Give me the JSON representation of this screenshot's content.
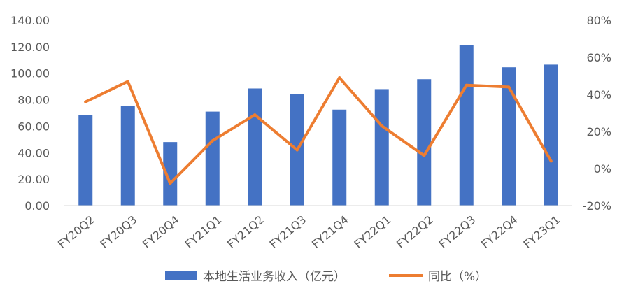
{
  "chart_data": {
    "type": "bar+line",
    "categories": [
      "FY20Q2",
      "FY20Q3",
      "FY20Q4",
      "FY21Q1",
      "FY21Q2",
      "FY21Q3",
      "FY21Q4",
      "FY22Q1",
      "FY22Q2",
      "FY22Q3",
      "FY22Q4",
      "FY23Q1"
    ],
    "series": [
      {
        "name": "本地生活业务收入（亿元）",
        "type": "bar",
        "axis": "left",
        "color": "#4472C4",
        "values": [
          68.5,
          75.5,
          48.0,
          71.0,
          88.5,
          84.0,
          72.5,
          88.0,
          95.5,
          121.5,
          104.5,
          106.5
        ]
      },
      {
        "name": "同比（%）",
        "type": "line",
        "axis": "right",
        "color": "#ED7D31",
        "values": [
          36,
          47,
          -8,
          15,
          29,
          10,
          49,
          23,
          7,
          45,
          44,
          4
        ]
      }
    ],
    "y_left": {
      "min": 0,
      "max": 140,
      "step": 20,
      "tick_labels": [
        "0.00",
        "20.00",
        "40.00",
        "60.00",
        "80.00",
        "100.00",
        "120.00",
        "140.00"
      ]
    },
    "y_right": {
      "min": -20,
      "max": 80,
      "step": 20,
      "tick_labels": [
        "-20%",
        "0%",
        "20%",
        "40%",
        "60%",
        "80%"
      ]
    },
    "grid": false,
    "legend_position": "bottom"
  }
}
